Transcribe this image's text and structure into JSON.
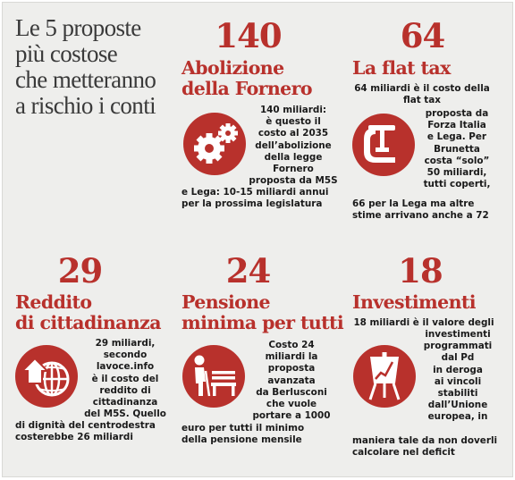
{
  "headline": [
    "Le 5 proposte",
    "più costose",
    "che metteranno",
    "a rischio i conti"
  ],
  "colors": {
    "accent": "#b8312c",
    "background": "#eeeeec",
    "text": "#1a1a1a"
  },
  "items": [
    {
      "number": "140",
      "title": [
        "Abolizione",
        "della Fornero"
      ],
      "icon": "gears-icon",
      "text": [
        "140 miliardi:",
        "è questo il",
        "costo al 2035",
        "dell’abolizione",
        "della legge",
        "Fornero",
        "proposta da M5S",
        "e Lega: 10-15 miliardi annui",
        "per la prossima legislatura"
      ]
    },
    {
      "number": "64",
      "title": [
        "La flat tax"
      ],
      "icon": "clamp-icon",
      "text": [
        "64 miliardi è il costo della",
        "flat tax",
        "proposta da",
        "Forza Italia",
        "e Lega. Per",
        "Brunetta",
        "costa “solo”",
        "50 miliardi,",
        "tutti coperti,",
        "66 per la Lega ma altre",
        "stime arrivano anche a 72"
      ]
    },
    {
      "number": "29",
      "title": [
        "Reddito",
        "di cittadinanza"
      ],
      "icon": "globe-house-icon",
      "text": [
        "29 miliardi,",
        "secondo",
        "lavoce.info",
        "è il costo del",
        "reddito di",
        "cittadinanza",
        "del M5S. Quello",
        "di dignità del centrodestra",
        "costerebbe 26 miliardi"
      ]
    },
    {
      "number": "24",
      "title": [
        "Pensione",
        "minima per tutti"
      ],
      "icon": "pensioner-bench-icon",
      "text": [
        "Costo 24",
        "miliardi la",
        "proposta",
        "avanzata",
        "da Berlusconi",
        "che vuole",
        "portare a 1000",
        "euro per tutti il minimo",
        "della pensione mensile"
      ]
    },
    {
      "number": "18",
      "title": [
        "Investimenti"
      ],
      "icon": "chart-easel-icon",
      "text": [
        "18 miliardi è il valore degli",
        "investimenti",
        "programmati",
        "dal Pd",
        "in deroga",
        "ai vincoli",
        "stabiliti",
        "dall’Unione",
        "europea, in",
        "maniera tale da non doverli",
        "calcolare nel deficit"
      ]
    }
  ]
}
